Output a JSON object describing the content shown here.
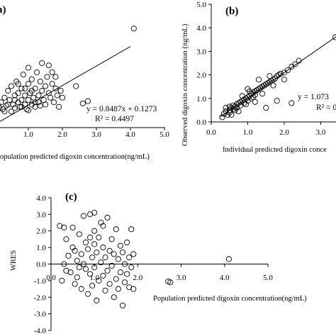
{
  "chart_data": [
    {
      "id": "a",
      "type": "scatter",
      "panel_label": "a)",
      "xlabel": "opulation  predicted digoxin concentration(ng/mL)",
      "ylabel": "",
      "xlim": [
        0,
        5
      ],
      "ylim": [
        0,
        5
      ],
      "x_ticks": [
        "1.0",
        "2.0",
        "3.0",
        "4.0",
        "5.0"
      ],
      "y_ticks": [],
      "equation": "y = 0.8487x + 0.1273",
      "r_squared": "R² = 0.4497",
      "trendline": {
        "slope": 0.8487,
        "intercept": 0.1273,
        "x_start": 0.0,
        "x_end": 4.0
      },
      "points": [
        [
          0.05,
          0.9
        ],
        [
          0.1,
          1.0
        ],
        [
          0.15,
          0.85
        ],
        [
          0.2,
          1.1
        ],
        [
          0.25,
          0.8
        ],
        [
          0.3,
          1.3
        ],
        [
          0.35,
          0.95
        ],
        [
          0.4,
          1.6
        ],
        [
          0.45,
          1.2
        ],
        [
          0.5,
          0.7
        ],
        [
          0.5,
          1.8
        ],
        [
          0.55,
          1.0
        ],
        [
          0.6,
          1.4
        ],
        [
          0.6,
          0.85
        ],
        [
          0.65,
          2.0
        ],
        [
          0.7,
          1.1
        ],
        [
          0.7,
          1.5
        ],
        [
          0.75,
          0.9
        ],
        [
          0.8,
          1.7
        ],
        [
          0.8,
          1.2
        ],
        [
          0.85,
          2.3
        ],
        [
          0.9,
          1.0
        ],
        [
          0.9,
          1.4
        ],
        [
          0.95,
          0.8
        ],
        [
          1.0,
          1.9
        ],
        [
          1.0,
          1.2
        ],
        [
          1.0,
          2.6
        ],
        [
          1.05,
          1.5
        ],
        [
          1.1,
          1.0
        ],
        [
          1.1,
          2.1
        ],
        [
          1.15,
          1.3
        ],
        [
          1.2,
          1.7
        ],
        [
          1.2,
          0.9
        ],
        [
          1.25,
          2.4
        ],
        [
          1.3,
          1.4
        ],
        [
          1.3,
          1.1
        ],
        [
          1.35,
          2.0
        ],
        [
          1.4,
          1.6
        ],
        [
          1.4,
          2.8
        ],
        [
          1.45,
          1.2
        ],
        [
          1.5,
          1.8
        ],
        [
          1.5,
          1.0
        ],
        [
          1.55,
          2.2
        ],
        [
          1.6,
          1.5
        ],
        [
          1.6,
          2.7
        ],
        [
          1.65,
          1.3
        ],
        [
          1.7,
          1.9
        ],
        [
          1.7,
          2.4
        ],
        [
          1.75,
          1.1
        ],
        [
          1.8,
          1.7
        ],
        [
          1.8,
          2.2
        ],
        [
          1.85,
          1.4
        ],
        [
          1.9,
          0.9
        ],
        [
          1.95,
          1.6
        ],
        [
          2.0,
          1.3
        ],
        [
          0.3,
          0.7
        ],
        [
          0.6,
          1.2
        ],
        [
          0.9,
          1.7
        ],
        [
          1.2,
          1.1
        ],
        [
          0.4,
          1.0
        ],
        [
          0.8,
          0.9
        ],
        [
          1.1,
          1.6
        ],
        [
          1.35,
          0.95
        ],
        [
          0.7,
          1.9
        ],
        [
          1.0,
          0.75
        ],
        [
          2.4,
          1.8
        ],
        [
          2.6,
          1.05
        ],
        [
          2.75,
          1.15
        ],
        [
          4.1,
          4.3
        ]
      ]
    },
    {
      "id": "b",
      "type": "scatter",
      "panel_label": "(b)",
      "xlabel": "Individual predicted digoxin conce",
      "ylabel": "Observed digoxin concentration (ng/mL)",
      "xlim": [
        0,
        3.6
      ],
      "ylim": [
        0,
        5
      ],
      "x_ticks": [
        "0.0",
        "1.0",
        "2.0",
        "3.0"
      ],
      "y_ticks": [
        "0.0",
        "1.0",
        "2.0",
        "3.0",
        "4.0",
        "5.0"
      ],
      "equation": "y = 1.073",
      "r_squared": "R² = 0",
      "trendline": {
        "slope": 1.0735,
        "intercept": -0.05,
        "x_start": 0.25,
        "x_end": 3.45
      },
      "points": [
        [
          0.3,
          0.2
        ],
        [
          0.35,
          0.35
        ],
        [
          0.4,
          0.45
        ],
        [
          0.45,
          0.3
        ],
        [
          0.5,
          0.5
        ],
        [
          0.5,
          0.4
        ],
        [
          0.55,
          0.6
        ],
        [
          0.6,
          0.55
        ],
        [
          0.6,
          0.7
        ],
        [
          0.65,
          0.65
        ],
        [
          0.7,
          0.75
        ],
        [
          0.7,
          0.6
        ],
        [
          0.75,
          0.8
        ],
        [
          0.8,
          0.85
        ],
        [
          0.8,
          0.7
        ],
        [
          0.85,
          0.9
        ],
        [
          0.9,
          0.95
        ],
        [
          0.9,
          0.8
        ],
        [
          0.95,
          1.0
        ],
        [
          1.0,
          1.05
        ],
        [
          1.0,
          0.9
        ],
        [
          1.05,
          1.1
        ],
        [
          1.1,
          1.2
        ],
        [
          1.1,
          1.0
        ],
        [
          1.15,
          1.25
        ],
        [
          1.2,
          1.3
        ],
        [
          1.2,
          1.15
        ],
        [
          1.25,
          1.35
        ],
        [
          1.3,
          1.4
        ],
        [
          1.35,
          1.45
        ],
        [
          1.4,
          1.5
        ],
        [
          1.45,
          1.55
        ],
        [
          1.5,
          1.6
        ],
        [
          1.55,
          1.65
        ],
        [
          1.6,
          1.7
        ],
        [
          1.65,
          1.75
        ],
        [
          1.7,
          1.8
        ],
        [
          1.75,
          1.85
        ],
        [
          1.8,
          1.95
        ],
        [
          1.85,
          2.0
        ],
        [
          1.9,
          2.05
        ],
        [
          2.0,
          2.1
        ],
        [
          2.1,
          2.2
        ],
        [
          2.2,
          2.35
        ],
        [
          2.3,
          2.45
        ],
        [
          2.4,
          2.6
        ],
        [
          0.55,
          0.3
        ],
        [
          0.75,
          0.45
        ],
        [
          1.0,
          1.4
        ],
        [
          1.3,
          1.8
        ],
        [
          1.5,
          0.6
        ],
        [
          1.8,
          0.9
        ],
        [
          2.2,
          0.8
        ],
        [
          0.4,
          0.6
        ],
        [
          0.65,
          0.5
        ],
        [
          1.2,
          0.85
        ],
        [
          1.4,
          1.2
        ],
        [
          1.6,
          1.95
        ],
        [
          1.7,
          1.55
        ],
        [
          0.85,
          1.1
        ],
        [
          2.0,
          1.8
        ],
        [
          0.5,
          0.65
        ],
        [
          1.15,
          1.05
        ],
        [
          0.95,
          0.75
        ],
        [
          1.05,
          1.3
        ],
        [
          3.4,
          3.6
        ]
      ]
    },
    {
      "id": "c",
      "type": "scatter",
      "panel_label": "(c)",
      "xlabel": "Population predicted digoxin concentration(ng/mL)",
      "ylabel": "WRES",
      "xlim": [
        0,
        5
      ],
      "ylim": [
        -4,
        4
      ],
      "x_ticks": [
        "0.0",
        "1.0",
        "2.0",
        "3.0",
        "4.0",
        "5.0"
      ],
      "y_ticks": [
        "-4.0",
        "-3.0",
        "-2.0",
        "-1.0",
        "0.0",
        "1.0",
        "2.0",
        "3.0",
        "4.0"
      ],
      "points": [
        [
          0.2,
          2.3
        ],
        [
          0.3,
          2.2
        ],
        [
          0.25,
          -1.0
        ],
        [
          0.35,
          1.5
        ],
        [
          0.4,
          0.5
        ],
        [
          0.45,
          -0.5
        ],
        [
          0.5,
          2.2
        ],
        [
          0.5,
          1.0
        ],
        [
          0.55,
          -1.2
        ],
        [
          0.6,
          0.2
        ],
        [
          0.6,
          -0.8
        ],
        [
          0.65,
          1.8
        ],
        [
          0.7,
          0.6
        ],
        [
          0.7,
          -1.5
        ],
        [
          0.75,
          2.9
        ],
        [
          0.75,
          0.0
        ],
        [
          0.8,
          1.3
        ],
        [
          0.8,
          -0.3
        ],
        [
          0.85,
          -1.8
        ],
        [
          0.85,
          0.9
        ],
        [
          0.9,
          3.0
        ],
        [
          0.9,
          -0.6
        ],
        [
          0.95,
          0.4
        ],
        [
          0.95,
          -1.3
        ],
        [
          1.0,
          2.0
        ],
        [
          1.0,
          1.2
        ],
        [
          1.0,
          -0.2
        ],
        [
          1.05,
          -2.2
        ],
        [
          1.05,
          0.7
        ],
        [
          1.1,
          1.6
        ],
        [
          1.1,
          -1.0
        ],
        [
          1.15,
          0.1
        ],
        [
          1.15,
          2.5
        ],
        [
          1.2,
          -0.7
        ],
        [
          1.2,
          1.0
        ],
        [
          1.25,
          -1.6
        ],
        [
          1.25,
          0.4
        ],
        [
          1.3,
          2.8
        ],
        [
          1.3,
          -0.4
        ],
        [
          1.35,
          0.8
        ],
        [
          1.35,
          -1.2
        ],
        [
          1.4,
          1.5
        ],
        [
          1.4,
          -0.1
        ],
        [
          1.45,
          -2.0
        ],
        [
          1.45,
          0.6
        ],
        [
          1.5,
          2.1
        ],
        [
          1.5,
          -0.9
        ],
        [
          1.55,
          0.3
        ],
        [
          1.55,
          -1.5
        ],
        [
          1.6,
          1.1
        ],
        [
          1.6,
          -0.5
        ],
        [
          1.65,
          0.7
        ],
        [
          1.65,
          -2.5
        ],
        [
          1.7,
          -1.1
        ],
        [
          1.7,
          0.0
        ],
        [
          1.75,
          1.3
        ],
        [
          1.75,
          -0.6
        ],
        [
          1.8,
          0.4
        ],
        [
          1.8,
          -1.4
        ],
        [
          1.85,
          2.1
        ],
        [
          1.85,
          -0.2
        ],
        [
          1.9,
          -1.5
        ],
        [
          1.9,
          0.6
        ],
        [
          0.3,
          0.0
        ],
        [
          0.55,
          0.8
        ],
        [
          0.65,
          -0.2
        ],
        [
          0.35,
          -0.4
        ],
        [
          1.0,
          3.1
        ],
        [
          0.9,
          1.6
        ],
        [
          1.2,
          2.3
        ],
        [
          2.7,
          -1.05
        ],
        [
          2.75,
          -1.1
        ],
        [
          4.1,
          0.3
        ]
      ]
    }
  ]
}
